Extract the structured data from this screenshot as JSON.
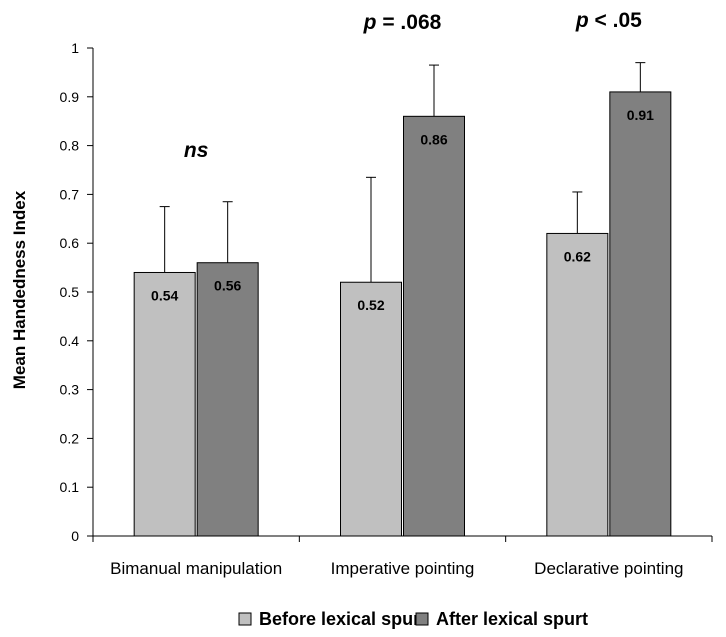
{
  "chart_data": {
    "type": "bar",
    "categories": [
      "Bimanual manipulation",
      "Imperative pointing",
      "Declarative pointing"
    ],
    "series": [
      {
        "name": "Before lexical spurt",
        "values": [
          0.54,
          0.52,
          0.62
        ],
        "error_upper": [
          0.675,
          0.735,
          0.705
        ],
        "color": "#c0c0c0"
      },
      {
        "name": "After lexical spurt",
        "values": [
          0.56,
          0.86,
          0.91
        ],
        "error_upper": [
          0.685,
          0.965,
          0.97
        ],
        "color": "#808080"
      }
    ],
    "value_labels": [
      [
        "0.54",
        "0.52",
        "0.62"
      ],
      [
        "0.56",
        "0.86",
        "0.91"
      ]
    ],
    "ylabel": "Mean Handedness Index",
    "xlabel": "",
    "ylim": [
      0,
      1
    ],
    "yticks": [
      "0",
      "0.1",
      "0.2",
      "0.3",
      "0.4",
      "0.5",
      "0.6",
      "0.7",
      "0.8",
      "0.9",
      "1"
    ],
    "annotations": [
      {
        "category": "Bimanual manipulation",
        "parts": [
          {
            "text": "ns",
            "italic": true
          }
        ]
      },
      {
        "category": "Imperative pointing",
        "parts": [
          {
            "text": "p",
            "italic": true
          },
          {
            "text": " = .068",
            "italic": false
          }
        ]
      },
      {
        "category": "Declarative pointing",
        "parts": [
          {
            "text": "p",
            "italic": true
          },
          {
            "text": " < .05",
            "italic": false
          }
        ]
      }
    ],
    "grid": false,
    "legend_position": "bottom"
  }
}
